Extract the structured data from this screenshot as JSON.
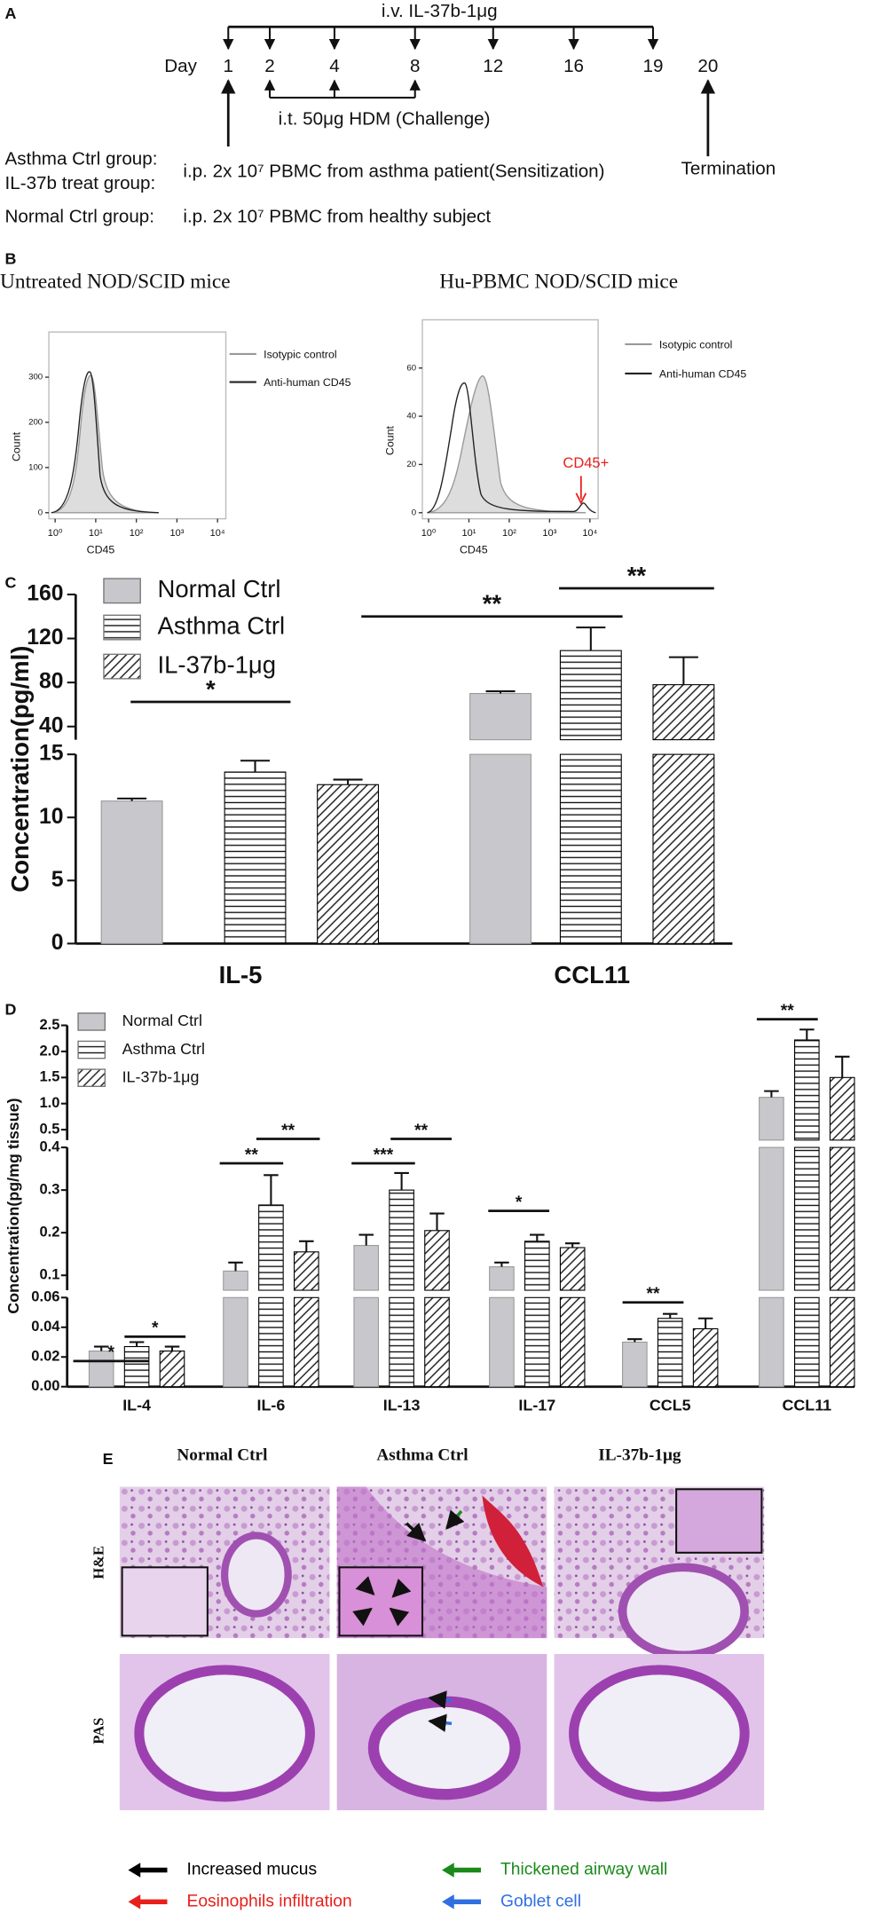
{
  "panel_a": {
    "label": "A",
    "iv": "i.v. IL-37b-1μg",
    "day_label": "Day",
    "days": [
      1,
      2,
      4,
      8,
      12,
      16,
      19,
      20
    ],
    "challenge": "i.t. 50μg HDM (Challenge)",
    "termination": "Termination",
    "groups": [
      "Asthma Ctrl group:",
      "IL-37b treat group:",
      "Normal Ctrl group:"
    ],
    "treatments": [
      "i.p. 2x 10⁷ PBMC from asthma patient(Sensitization)",
      "i.p. 2x 10⁷ PBMC from healthy subject"
    ]
  },
  "panel_b": {
    "label": "B",
    "plots": [
      {
        "title": "Untreated NOD/SCID mice",
        "xlabel": "CD45",
        "ylabel": "Count",
        "log_x": true,
        "xlim": [
          0.7,
          16000
        ],
        "xticks": [
          {
            "value": 1,
            "label": "10⁰"
          },
          {
            "value": 10,
            "label": "10¹"
          },
          {
            "value": 100,
            "label": "10²"
          },
          {
            "value": 1000,
            "label": "10³"
          },
          {
            "value": 10000,
            "label": "10⁴"
          }
        ],
        "ylim": [
          0,
          400
        ],
        "yticks": [
          0,
          100,
          200,
          300
        ],
        "legend": [
          {
            "name": "Isotypic control",
            "color": "#999999"
          },
          {
            "name": "Anti-human CD45",
            "color": "#222222"
          }
        ]
      },
      {
        "title": "Hu-PBMC NOD/SCID mice",
        "xlabel": "CD45",
        "ylabel": "Count",
        "log_x": true,
        "xlim": [
          0.7,
          16000
        ],
        "xticks": [
          {
            "value": 1,
            "label": "10⁰"
          },
          {
            "value": 10,
            "label": "10¹"
          },
          {
            "value": 100,
            "label": "10²"
          },
          {
            "value": 1000,
            "label": "10³"
          },
          {
            "value": 10000,
            "label": "10⁴"
          }
        ],
        "ylim": [
          0,
          80
        ],
        "yticks": [
          0,
          20,
          40,
          60
        ],
        "legend": [
          {
            "name": "Isotypic control",
            "color": "#999999"
          },
          {
            "name": "Anti-human CD45",
            "color": "#222222"
          }
        ],
        "annotation": "CD45+"
      }
    ]
  },
  "chart_data": [
    {
      "panel_label": "C",
      "type": "bar",
      "ylabel": "Concentration(pg/ml)",
      "categories": [
        "IL-5",
        "CCL11"
      ],
      "series": [
        {
          "name": "Normal Ctrl",
          "color": "#c8c8cc",
          "values": [
            11.3,
            70
          ],
          "errors": [
            0.2,
            2
          ]
        },
        {
          "name": "Asthma Ctrl",
          "color": "#000000",
          "hatch": "horizontal",
          "values": [
            13.6,
            109
          ],
          "errors": [
            0.9,
            21
          ]
        },
        {
          "name": "IL-37b-1μg",
          "color": "#000000",
          "hatch": "diagonal",
          "values": [
            12.6,
            78
          ],
          "errors": [
            0.4,
            25
          ]
        }
      ],
      "segments": [
        {
          "ylim": [
            0,
            15
          ],
          "yticks": [
            0,
            5,
            10,
            15
          ]
        },
        {
          "ylim": [
            28,
            160
          ],
          "yticks": [
            40,
            80,
            120,
            160
          ]
        }
      ],
      "annotations": [
        "*",
        "**",
        "**"
      ]
    },
    {
      "panel_label": "D",
      "type": "bar",
      "ylabel": "Concentration(pg/mg tissue)",
      "categories": [
        "IL-4",
        "IL-6",
        "IL-13",
        "IL-17",
        "CCL5",
        "CCL11"
      ],
      "series": [
        {
          "name": "Normal Ctrl",
          "color": "#c8c8cc",
          "values": [
            0.024,
            0.11,
            0.17,
            0.12,
            0.03,
            1.12
          ],
          "errors": [
            0.003,
            0.02,
            0.025,
            0.01,
            0.002,
            0.12
          ]
        },
        {
          "name": "Asthma Ctrl",
          "color": "#000000",
          "hatch": "horizontal",
          "values": [
            0.027,
            0.265,
            0.3,
            0.18,
            0.046,
            2.22
          ],
          "errors": [
            0.003,
            0.07,
            0.04,
            0.015,
            0.003,
            0.2
          ]
        },
        {
          "name": "IL-37b-1μg",
          "color": "#000000",
          "hatch": "diagonal",
          "values": [
            0.024,
            0.155,
            0.205,
            0.165,
            0.039,
            1.5
          ],
          "errors": [
            0.003,
            0.025,
            0.04,
            0.01,
            0.007,
            0.4
          ]
        }
      ],
      "segments": [
        {
          "ylim": [
            0,
            0.06
          ],
          "yticks": [
            {
              "value": 0,
              "label": "0.00"
            },
            0.02,
            0.04,
            0.06
          ]
        },
        {
          "ylim": [
            0.065,
            0.4
          ],
          "yticks": [
            0.1,
            0.2,
            0.3,
            0.4
          ]
        },
        {
          "ylim": [
            0.3,
            2.5
          ],
          "yticks": [
            0.5,
            {
              "value": 1,
              "label": "1.0"
            },
            1.5,
            {
              "value": 2,
              "label": "2.0"
            },
            2.5
          ]
        }
      ],
      "annotations": [
        "*",
        "*",
        "**",
        "**",
        "***",
        "**",
        "*",
        "**",
        "**"
      ]
    }
  ],
  "panel_e": {
    "label": "E",
    "columns": [
      "Normal Ctrl",
      "Asthma Ctrl",
      "IL-37b-1μg"
    ],
    "rows": [
      "H&E",
      "PAS"
    ],
    "legend": [
      {
        "text": "Increased mucus",
        "color": "#000000"
      },
      {
        "text": "Eosinophils infiltration",
        "color": "#e8201c"
      },
      {
        "text": "Thickened airway wall",
        "color": "#1a8a1a"
      },
      {
        "text": "Goblet cell",
        "color": "#2f6fe0"
      }
    ]
  }
}
